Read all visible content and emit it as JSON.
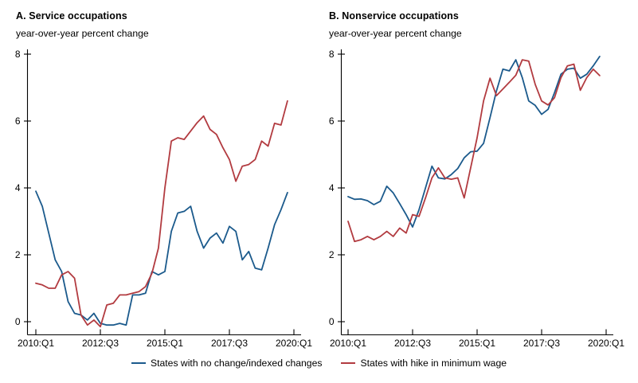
{
  "panels": [
    {
      "title": "A. Service occupations",
      "subtitle": "year-over-year percent change"
    },
    {
      "title": "B. Nonservice occupations",
      "subtitle": "year-over-year percent change"
    }
  ],
  "legend": {
    "items": [
      {
        "label": "States with no change/indexed changes",
        "color": "#1b5a8c"
      },
      {
        "label": "States with hike in minimum wage",
        "color": "#b23b40"
      }
    ]
  },
  "chart_data": [
    {
      "type": "line",
      "title": "A. Service occupations",
      "ylabel": "year-over-year percent change",
      "x_unit": "quarter",
      "x_start": "2010:Q1",
      "x_end": "2019:Q4",
      "ylim": [
        -0.5,
        8
      ],
      "yticks": [
        0,
        2,
        4,
        6,
        8
      ],
      "xticks": [
        {
          "label": "2010:Q1",
          "q": 0
        },
        {
          "label": "2012:Q3",
          "q": 10
        },
        {
          "label": "2015:Q1",
          "q": 20
        },
        {
          "label": "2017:Q3",
          "q": 30
        },
        {
          "label": "2020:Q1",
          "q": 40
        }
      ],
      "grid": false,
      "series": [
        {
          "name": "States with no change/indexed changes",
          "color": "#1b5a8c",
          "values": [
            3.9,
            3.45,
            2.65,
            1.85,
            1.5,
            0.6,
            0.25,
            0.2,
            0.05,
            0.25,
            -0.05,
            -0.1,
            -0.1,
            -0.05,
            -0.1,
            0.8,
            0.8,
            0.85,
            1.5,
            1.4,
            1.5,
            2.7,
            3.25,
            3.3,
            3.45,
            2.7,
            2.2,
            2.5,
            2.65,
            2.35,
            2.85,
            2.7,
            1.85,
            2.1,
            1.6,
            1.55,
            2.2,
            2.9,
            3.35,
            3.86
          ]
        },
        {
          "name": "States with hike in minimum wage",
          "color": "#b23b40",
          "values": [
            1.15,
            1.1,
            1.0,
            1.0,
            1.4,
            1.5,
            1.3,
            0.2,
            -0.1,
            0.05,
            -0.15,
            0.5,
            0.55,
            0.8,
            0.8,
            0.85,
            0.9,
            1.05,
            1.45,
            2.2,
            4.0,
            5.4,
            5.5,
            5.45,
            5.7,
            5.95,
            6.15,
            5.75,
            5.6,
            5.2,
            4.85,
            4.2,
            4.65,
            4.7,
            4.85,
            5.4,
            5.25,
            5.93,
            5.88,
            6.6
          ]
        }
      ]
    },
    {
      "type": "line",
      "title": "B. Nonservice occupations",
      "ylabel": "year-over-year percent change",
      "x_unit": "quarter",
      "x_start": "2010:Q1",
      "x_end": "2019:Q4",
      "ylim": [
        -0.5,
        8
      ],
      "yticks": [
        0,
        2,
        4,
        6,
        8
      ],
      "xticks": [
        {
          "label": "2010:Q1",
          "q": 0
        },
        {
          "label": "2012:Q3",
          "q": 10
        },
        {
          "label": "2015:Q1",
          "q": 20
        },
        {
          "label": "2017:Q3",
          "q": 30
        },
        {
          "label": "2020:Q1",
          "q": 40
        }
      ],
      "grid": false,
      "series": [
        {
          "name": "States with no change/indexed changes",
          "color": "#1b5a8c",
          "values": [
            3.74,
            3.66,
            3.67,
            3.62,
            3.5,
            3.6,
            4.05,
            3.85,
            3.53,
            3.2,
            2.83,
            3.35,
            4.0,
            4.65,
            4.3,
            4.27,
            4.4,
            4.58,
            4.9,
            5.08,
            5.1,
            5.33,
            6.1,
            6.9,
            7.55,
            7.5,
            7.83,
            7.3,
            6.6,
            6.47,
            6.2,
            6.35,
            6.85,
            7.4,
            7.55,
            7.58,
            7.28,
            7.4,
            7.65,
            7.93
          ]
        },
        {
          "name": "States with hike in minimum wage",
          "color": "#b23b40",
          "values": [
            3.0,
            2.4,
            2.45,
            2.55,
            2.45,
            2.55,
            2.7,
            2.55,
            2.8,
            2.65,
            3.2,
            3.15,
            3.7,
            4.3,
            4.6,
            4.3,
            4.26,
            4.3,
            3.7,
            4.6,
            5.5,
            6.6,
            7.28,
            6.76,
            6.96,
            7.16,
            7.37,
            7.83,
            7.79,
            7.1,
            6.6,
            6.48,
            6.7,
            7.3,
            7.65,
            7.7,
            6.92,
            7.3,
            7.55,
            7.36
          ]
        }
      ]
    }
  ]
}
